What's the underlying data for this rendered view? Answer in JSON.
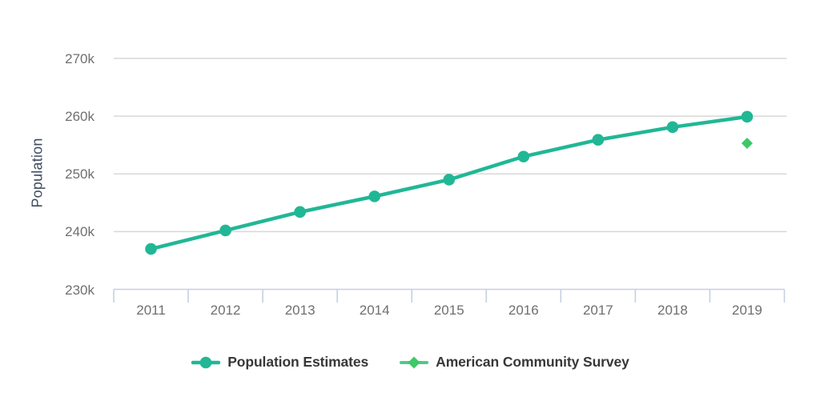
{
  "colors": {
    "background": "#ffffff",
    "grid": "#d8d8d8",
    "axis": "#c4d0e2",
    "tick_label": "#6f6f6f",
    "axis_title": "#3c4a5e",
    "legend_text": "#383838"
  },
  "chart_data": {
    "type": "line",
    "title": "",
    "xlabel": "",
    "ylabel": "Population",
    "categories": [
      "2011",
      "2012",
      "2013",
      "2014",
      "2015",
      "2016",
      "2017",
      "2018",
      "2019"
    ],
    "ylim": [
      230000,
      270000
    ],
    "yticks": [
      {
        "value": 230000,
        "label": "230k"
      },
      {
        "value": 240000,
        "label": "240k"
      },
      {
        "value": 250000,
        "label": "250k"
      },
      {
        "value": 260000,
        "label": "260k"
      },
      {
        "value": 270000,
        "label": "270k"
      }
    ],
    "grid": true,
    "legend_position": "bottom",
    "series": [
      {
        "name": "Population Estimates",
        "type": "line",
        "marker": "circle",
        "color": "#21b795",
        "line_color": "#21b795",
        "values": [
          237000,
          240200,
          243400,
          246100,
          249000,
          253000,
          255900,
          258100,
          259900
        ]
      },
      {
        "name": "American Community Survey",
        "type": "scatter",
        "marker": "diamond",
        "color": "#3dc869",
        "line_color": "#50c987",
        "values": [
          null,
          null,
          null,
          null,
          null,
          null,
          null,
          null,
          255300
        ]
      }
    ]
  }
}
